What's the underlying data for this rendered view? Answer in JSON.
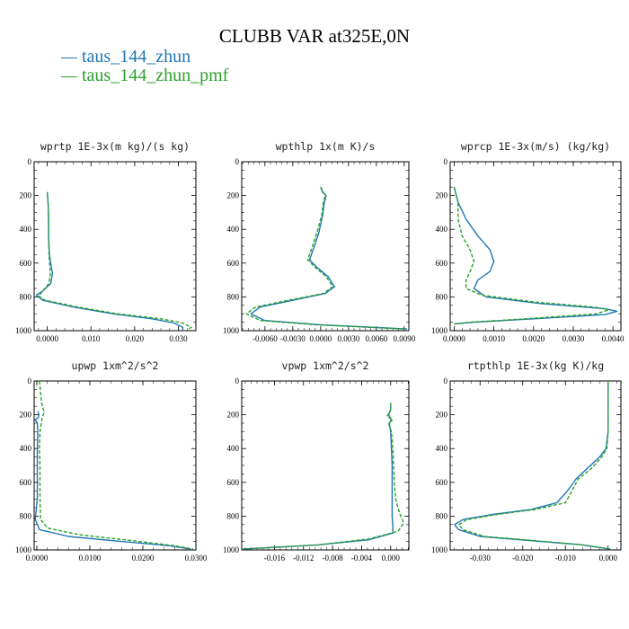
{
  "title": "CLUBB VAR at325E,0N",
  "legend": [
    {
      "label": "taus_144_zhun",
      "color": "#1f77b4"
    },
    {
      "label": "taus_144_zhun_pmf",
      "color": "#2ca02c"
    }
  ],
  "chart_data": [
    {
      "type": "line",
      "title": "wprtp  1E-3x(m kg)/(s kg)",
      "xlim": [
        -0.003,
        0.034
      ],
      "ylim": [
        1000,
        0
      ],
      "xticks": [
        0.0,
        0.01,
        0.02,
        0.03
      ],
      "xticklabels": [
        "0.0000",
        "0.010",
        "0.020",
        "0.030"
      ],
      "yticks": [
        0,
        200,
        400,
        600,
        800,
        1000
      ],
      "yticklabels": [
        "0",
        "200",
        "400",
        "600",
        "800",
        "1000"
      ],
      "series": [
        {
          "name": "taus_144_zhun",
          "color": "#1f77b4",
          "style": "solid",
          "x": [
            0.0,
            0.0002,
            0.0003,
            0.0003,
            0.0005,
            0.0009,
            0.0012,
            0.0008,
            -0.001,
            -0.0025,
            -0.001,
            0.006,
            0.015,
            0.024,
            0.029,
            0.031,
            0.031
          ],
          "y": [
            180,
            250,
            350,
            450,
            550,
            620,
            660,
            720,
            765,
            790,
            820,
            860,
            900,
            930,
            955,
            980,
            995
          ]
        },
        {
          "name": "taus_144_zhun_pmf",
          "color": "#2ca02c",
          "style": "dashed",
          "x": [
            0.0,
            0.0002,
            0.0003,
            0.0003,
            0.0004,
            0.0006,
            0.0007,
            0.0004,
            -0.001,
            -0.002,
            -0.0005,
            0.007,
            0.016,
            0.026,
            0.031,
            0.033,
            0.032
          ],
          "y": [
            180,
            250,
            350,
            450,
            550,
            620,
            660,
            720,
            765,
            795,
            820,
            860,
            900,
            930,
            955,
            980,
            995
          ]
        }
      ]
    },
    {
      "type": "line",
      "title": "wpthlp  1x(m K)/s",
      "xlim": [
        -0.0085,
        0.0095
      ],
      "ylim": [
        1000,
        0
      ],
      "xticks": [
        -0.006,
        -0.003,
        0.0,
        0.003,
        0.006,
        0.009
      ],
      "xticklabels": [
        "-0.0060",
        "-0.0030",
        "0.0000",
        "0.0030",
        "0.0060",
        "0.0090"
      ],
      "yticks": [
        0,
        200,
        400,
        600,
        800,
        1000
      ],
      "yticklabels": [
        "0",
        "200",
        "400",
        "600",
        "800",
        "1000"
      ],
      "series": [
        {
          "name": "taus_144_zhun",
          "color": "#1f77b4",
          "style": "solid",
          "x": [
            0.0,
            0.0002,
            0.0006,
            0.0004,
            0.0002,
            -0.0002,
            -0.0008,
            -0.0012,
            -0.0005,
            0.0008,
            0.0015,
            0.0005,
            -0.003,
            -0.0065,
            -0.0075,
            -0.006,
            0.0,
            0.0055,
            0.0093
          ],
          "y": [
            150,
            180,
            200,
            240,
            320,
            420,
            520,
            580,
            620,
            680,
            740,
            780,
            820,
            860,
            900,
            940,
            965,
            980,
            990
          ]
        },
        {
          "name": "taus_144_zhun_pmf",
          "color": "#2ca02c",
          "style": "dashed",
          "x": [
            0.0,
            0.0003,
            0.0005,
            0.0003,
            0.0001,
            -0.0004,
            -0.001,
            -0.0014,
            -0.0007,
            0.0006,
            0.0013,
            0.0003,
            -0.0035,
            -0.007,
            -0.008,
            -0.0065,
            -0.0005,
            0.005,
            0.009
          ],
          "y": [
            150,
            180,
            200,
            240,
            320,
            420,
            520,
            580,
            620,
            680,
            740,
            780,
            820,
            860,
            900,
            940,
            965,
            980,
            990
          ]
        }
      ]
    },
    {
      "type": "line",
      "title": "wprcp  1E-3x(m/s) (kg/kg)",
      "xlim": [
        -0.0001,
        0.0042
      ],
      "ylim": [
        1000,
        0
      ],
      "xticks": [
        0.0,
        0.001,
        0.002,
        0.003,
        0.004
      ],
      "xticklabels": [
        "0.0000",
        "0.0010",
        "0.0020",
        "0.0030",
        "0.0040"
      ],
      "yticks": [
        0,
        200,
        400,
        600,
        800,
        1000
      ],
      "yticklabels": [
        "0",
        "200",
        "400",
        "600",
        "800",
        "1000"
      ],
      "series": [
        {
          "name": "taus_144_zhun",
          "color": "#1f77b4",
          "style": "solid",
          "x": [
            0.0,
            0.0001,
            0.0003,
            0.0006,
            0.0009,
            0.001,
            0.0009,
            0.0006,
            0.0005,
            0.0008,
            0.0022,
            0.0038,
            0.0041,
            0.0038,
            0.002,
            0.0005,
            0.0
          ],
          "y": [
            150,
            240,
            340,
            440,
            520,
            590,
            650,
            700,
            750,
            800,
            840,
            870,
            885,
            905,
            930,
            950,
            960
          ]
        },
        {
          "name": "taus_144_zhun_pmf",
          "color": "#2ca02c",
          "style": "dashed",
          "x": [
            0.0,
            0.0001,
            0.0001,
            0.0002,
            0.0004,
            0.0005,
            0.0004,
            0.0003,
            0.0003,
            0.0007,
            0.002,
            0.0035,
            0.0039,
            0.0036,
            0.0018,
            0.0004,
            0.0
          ],
          "y": [
            150,
            240,
            340,
            440,
            520,
            590,
            650,
            700,
            750,
            790,
            830,
            860,
            875,
            900,
            930,
            950,
            960
          ]
        }
      ]
    },
    {
      "type": "line",
      "title": "upwp  1xm^2/s^2",
      "xlim": [
        -0.0005,
        0.03
      ],
      "ylim": [
        1000,
        0
      ],
      "xticks": [
        0.0,
        0.01,
        0.02,
        0.03
      ],
      "xticklabels": [
        "0.0000",
        "0.0100",
        "0.0200",
        "0.0300"
      ],
      "yticks": [
        0,
        200,
        400,
        600,
        800,
        1000
      ],
      "yticklabels": [
        "0",
        "200",
        "400",
        "600",
        "800",
        "1000"
      ],
      "series": [
        {
          "name": "taus_144_zhun",
          "color": "#1f77b4",
          "style": "solid",
          "x": [
            0.0002,
            0.0004,
            0.0003,
            -0.0003,
            0.0001,
            0.0002,
            0.0001,
            0.0001,
            0.0001,
            0.0001,
            -0.0003,
            0.0005,
            0.006,
            0.016,
            0.025,
            0.029
          ],
          "y": [
            180,
            200,
            215,
            230,
            250,
            300,
            400,
            500,
            600,
            700,
            820,
            880,
            920,
            950,
            975,
            995
          ]
        },
        {
          "name": "taus_144_zhun_pmf",
          "color": "#2ca02c",
          "style": "dashed",
          "x": [
            0.0005,
            0.0009,
            0.0012,
            0.0014,
            0.001,
            0.0006,
            0.0005,
            0.0006,
            0.0006,
            0.0006,
            0.0007,
            0.002,
            0.008,
            0.018,
            0.026,
            0.0295
          ],
          "y": [
            0,
            130,
            165,
            185,
            220,
            300,
            400,
            500,
            600,
            700,
            820,
            870,
            910,
            945,
            975,
            995
          ]
        }
      ]
    },
    {
      "type": "line",
      "title": "vpwp  1xm^2/s^2",
      "xlim": [
        -0.0205,
        0.0025
      ],
      "ylim": [
        1000,
        0
      ],
      "xticks": [
        -0.016,
        -0.012,
        -0.008,
        -0.004,
        0.0
      ],
      "xticklabels": [
        "-0.016",
        "-0.012",
        "-0.008",
        "-0.004",
        "0.000"
      ],
      "yticks": [
        0,
        200,
        400,
        600,
        800,
        1000
      ],
      "yticklabels": [
        "0",
        "200",
        "400",
        "600",
        "800",
        "1000"
      ],
      "series": [
        {
          "name": "taus_144_zhun",
          "color": "#1f77b4",
          "style": "solid",
          "x": [
            0.0,
            0.0,
            -0.0003,
            0.0001,
            -0.0002,
            0.0,
            0.0001,
            0.0002,
            0.0002,
            0.0002,
            0.0002,
            0.0003,
            0.0003,
            -0.003,
            -0.01,
            -0.0205
          ],
          "y": [
            130,
            170,
            200,
            230,
            250,
            300,
            400,
            500,
            600,
            700,
            800,
            860,
            900,
            940,
            970,
            995
          ]
        },
        {
          "name": "taus_144_zhun_pmf",
          "color": "#2ca02c",
          "style": "dashed",
          "x": [
            0.0,
            0.0,
            -0.0005,
            0.0003,
            -0.0003,
            0.0001,
            0.0003,
            0.0004,
            0.0005,
            0.0007,
            0.0012,
            0.0018,
            0.001,
            -0.003,
            -0.01,
            -0.0205
          ],
          "y": [
            130,
            170,
            210,
            230,
            250,
            300,
            400,
            500,
            600,
            700,
            780,
            840,
            890,
            935,
            970,
            995
          ]
        }
      ]
    },
    {
      "type": "line",
      "title": "rtpthlp  1E-3x(kg K)/kg",
      "xlim": [
        -0.037,
        0.003
      ],
      "ylim": [
        1000,
        0
      ],
      "xticks": [
        -0.03,
        -0.02,
        -0.01,
        0.0
      ],
      "xticklabels": [
        "-0.030",
        "-0.020",
        "-0.010",
        "0.000"
      ],
      "yticks": [
        0,
        200,
        400,
        600,
        800,
        1000
      ],
      "yticklabels": [
        "0",
        "200",
        "400",
        "600",
        "800",
        "1000"
      ],
      "series": [
        {
          "name": "taus_144_zhun",
          "color": "#1f77b4",
          "style": "solid",
          "x": [
            0.0,
            0.0,
            -0.0005,
            -0.002,
            -0.005,
            -0.0075,
            -0.0095,
            -0.012,
            -0.018,
            -0.027,
            -0.034,
            -0.036,
            -0.035,
            -0.03,
            -0.018,
            -0.006,
            0.0005
          ],
          "y": [
            0,
            300,
            400,
            450,
            520,
            580,
            650,
            720,
            760,
            790,
            820,
            850,
            880,
            920,
            945,
            970,
            995
          ]
        },
        {
          "name": "taus_144_zhun_pmf",
          "color": "#2ca02c",
          "style": "dashed",
          "x": [
            0.0,
            0.0,
            -0.0003,
            -0.0015,
            -0.004,
            -0.007,
            -0.0085,
            -0.01,
            -0.017,
            -0.026,
            -0.033,
            -0.035,
            -0.034,
            -0.029,
            -0.017,
            -0.006,
            0.0005
          ],
          "y": [
            0,
            300,
            400,
            450,
            520,
            580,
            650,
            720,
            760,
            790,
            820,
            850,
            880,
            920,
            945,
            970,
            995
          ]
        }
      ]
    }
  ]
}
